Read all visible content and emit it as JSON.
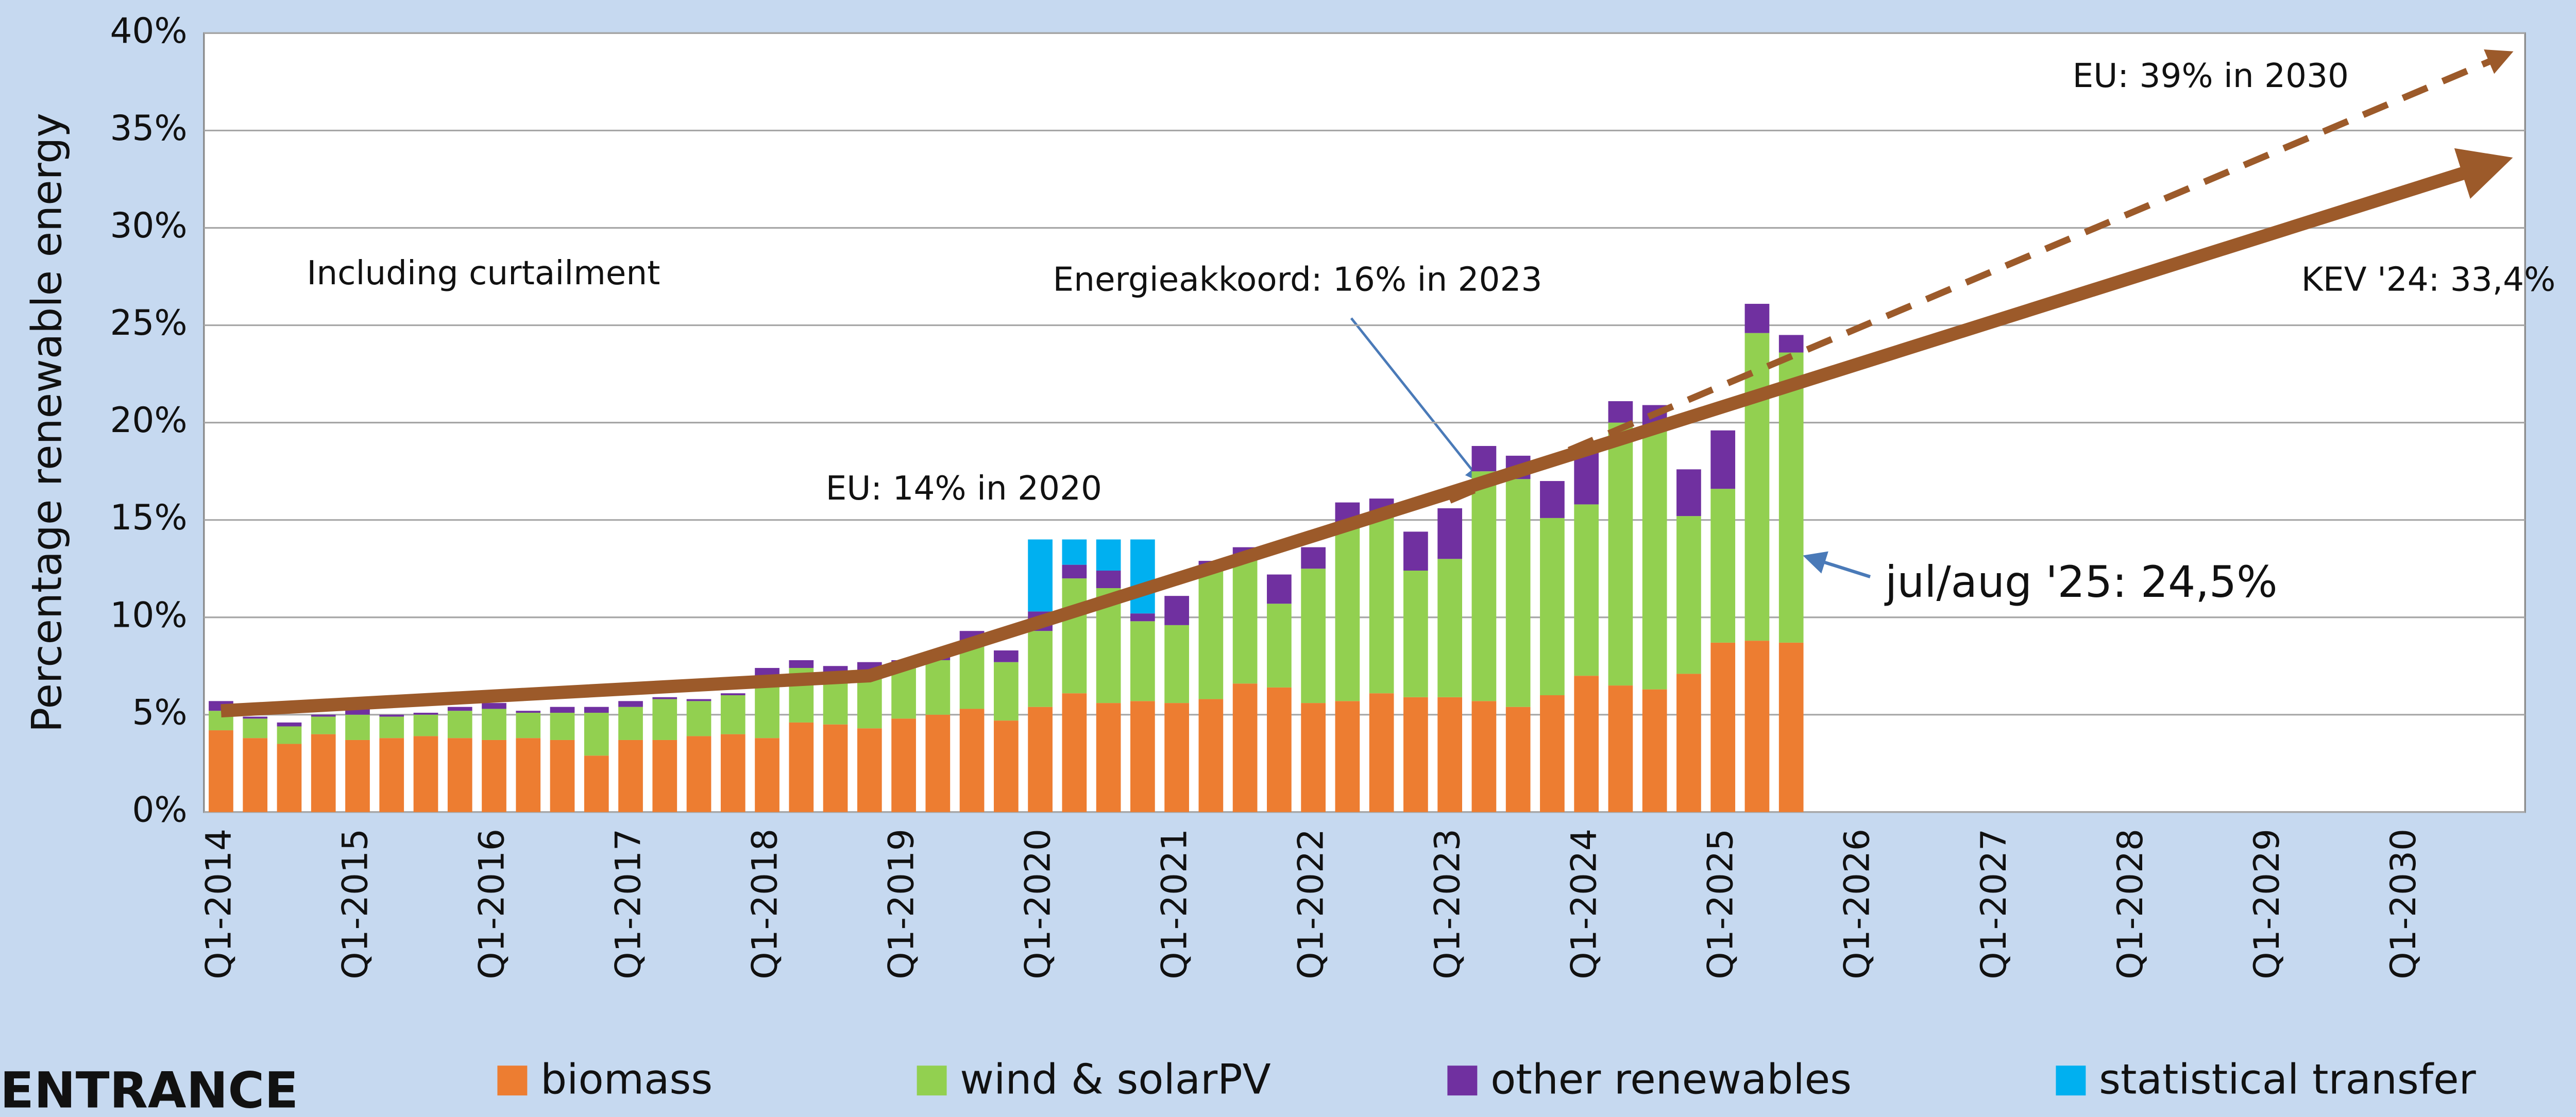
{
  "chart_data": {
    "type": "bar",
    "stacked": true,
    "ylabel": "Percentage renewable energy",
    "logo": "ENTRANCE",
    "categories": [
      "Q1-2014",
      null,
      null,
      null,
      "Q1-2015",
      null,
      null,
      null,
      "Q1-2016",
      null,
      null,
      null,
      "Q1-2017",
      null,
      null,
      null,
      "Q1-2018",
      null,
      null,
      null,
      "Q1-2019",
      null,
      null,
      null,
      "Q1-2020",
      null,
      null,
      null,
      "Q1-2021",
      null,
      null,
      null,
      "Q1-2022",
      null,
      null,
      null,
      "Q1-2023",
      null,
      null,
      null,
      "Q1-2024",
      null,
      null,
      null,
      "Q1-2025",
      null,
      null,
      null,
      "Q1-2026",
      null,
      null,
      null,
      "Q1-2027",
      null,
      null,
      null,
      "Q1-2028",
      null,
      null,
      null,
      "Q1-2029",
      null,
      null,
      null,
      "Q1-2030",
      null,
      null,
      null
    ],
    "series": [
      {
        "name": "biomass",
        "color": "#ed7d31",
        "values": [
          4.2,
          3.8,
          3.5,
          4.0,
          3.7,
          3.8,
          3.9,
          3.8,
          3.7,
          3.8,
          3.7,
          2.9,
          3.7,
          3.7,
          3.9,
          4.0,
          3.8,
          4.6,
          4.5,
          4.3,
          4.8,
          5.0,
          5.3,
          4.7,
          5.4,
          6.1,
          5.6,
          5.7,
          5.6,
          5.8,
          6.6,
          6.4,
          5.6,
          5.7,
          6.1,
          5.9,
          5.9,
          5.7,
          5.4,
          6.0,
          7.0,
          6.5,
          6.3,
          7.1,
          8.7,
          8.8,
          8.7,
          null,
          null,
          null,
          null,
          null,
          null,
          null,
          null,
          null,
          null,
          null,
          null,
          null,
          null,
          null,
          null,
          null,
          null,
          null,
          null,
          null
        ]
      },
      {
        "name": "wind & solarPV",
        "color": "#92d050",
        "values": [
          1.0,
          1.0,
          0.9,
          0.9,
          1.3,
          1.1,
          1.1,
          1.4,
          1.6,
          1.3,
          1.4,
          2.2,
          1.7,
          2.1,
          1.8,
          2.0,
          3.2,
          2.8,
          2.6,
          3.0,
          2.6,
          2.8,
          3.4,
          3.0,
          3.9,
          5.9,
          5.9,
          4.1,
          4.0,
          6.7,
          6.6,
          4.3,
          6.9,
          9.0,
          9.2,
          6.5,
          7.1,
          11.8,
          11.7,
          9.1,
          8.8,
          13.5,
          13.3,
          8.1,
          7.9,
          15.8,
          14.9,
          null,
          null,
          null,
          null,
          null,
          null,
          null,
          null,
          null,
          null,
          null,
          null,
          null,
          null,
          null,
          null,
          null,
          null,
          null,
          null,
          null
        ]
      },
      {
        "name": "other renewables",
        "color": "#7030a0",
        "values": [
          0.5,
          0.1,
          0.2,
          0.1,
          0.3,
          0.1,
          0.1,
          0.2,
          0.3,
          0.1,
          0.3,
          0.3,
          0.3,
          0.1,
          0.1,
          0.1,
          0.4,
          0.4,
          0.4,
          0.4,
          0.4,
          0.4,
          0.6,
          0.6,
          1.0,
          0.7,
          0.9,
          0.4,
          1.5,
          0.4,
          0.4,
          1.5,
          1.1,
          1.2,
          0.8,
          2.0,
          2.6,
          1.3,
          1.2,
          1.9,
          2.9,
          1.1,
          1.3,
          2.4,
          3.0,
          1.5,
          0.9,
          null,
          null,
          null,
          null,
          null,
          null,
          null,
          null,
          null,
          null,
          null,
          null,
          null,
          null,
          null,
          null,
          null,
          null,
          null,
          null,
          null
        ]
      },
      {
        "name": "statistical transfer",
        "color": "#00b0f0",
        "values": [
          null,
          null,
          null,
          null,
          null,
          null,
          null,
          null,
          null,
          null,
          null,
          null,
          null,
          null,
          null,
          null,
          null,
          null,
          null,
          null,
          null,
          null,
          null,
          null,
          3.7,
          1.3,
          1.6,
          3.8,
          null,
          null,
          null,
          null,
          null,
          null,
          null,
          null,
          null,
          null,
          null,
          null,
          null,
          null,
          null,
          null,
          null,
          null,
          null,
          null,
          null,
          null,
          null,
          null,
          null,
          null,
          null,
          null,
          null,
          null,
          null,
          null,
          null,
          null,
          null,
          null,
          null,
          null,
          null,
          null
        ]
      }
    ],
    "trend_lines": [
      {
        "color": "#9c5a2a",
        "style": "solid",
        "x": [
          2014.0,
          2018.75,
          2030.6
        ],
        "values": [
          5.2,
          7.0,
          33.2
        ]
      },
      {
        "color": "#9c5a2a",
        "style": "dashed",
        "x": [
          2023.0,
          2030.7
        ],
        "values": [
          16.0,
          38.8
        ]
      }
    ],
    "annotations": [
      "Including curtailment",
      "EU: 14% in 2020",
      "Energieakkoord: 16% in 2023",
      "EU: 39% in 2030",
      "KEV '24: 33,4%",
      "jul/aug '25: 24,5%"
    ],
    "ylim": [
      0,
      40
    ],
    "yticks": [
      {
        "value": 0,
        "label": "0%"
      },
      {
        "value": 5,
        "label": "5%"
      },
      {
        "value": 10,
        "label": "10%"
      },
      {
        "value": 15,
        "label": "15%"
      },
      {
        "value": 20,
        "label": "20%"
      },
      {
        "value": 25,
        "label": "25%"
      },
      {
        "value": 30,
        "label": "30%"
      },
      {
        "value": 35,
        "label": "35%"
      },
      {
        "value": 40,
        "label": "40%"
      }
    ],
    "grid": true,
    "legend": "bottom"
  }
}
